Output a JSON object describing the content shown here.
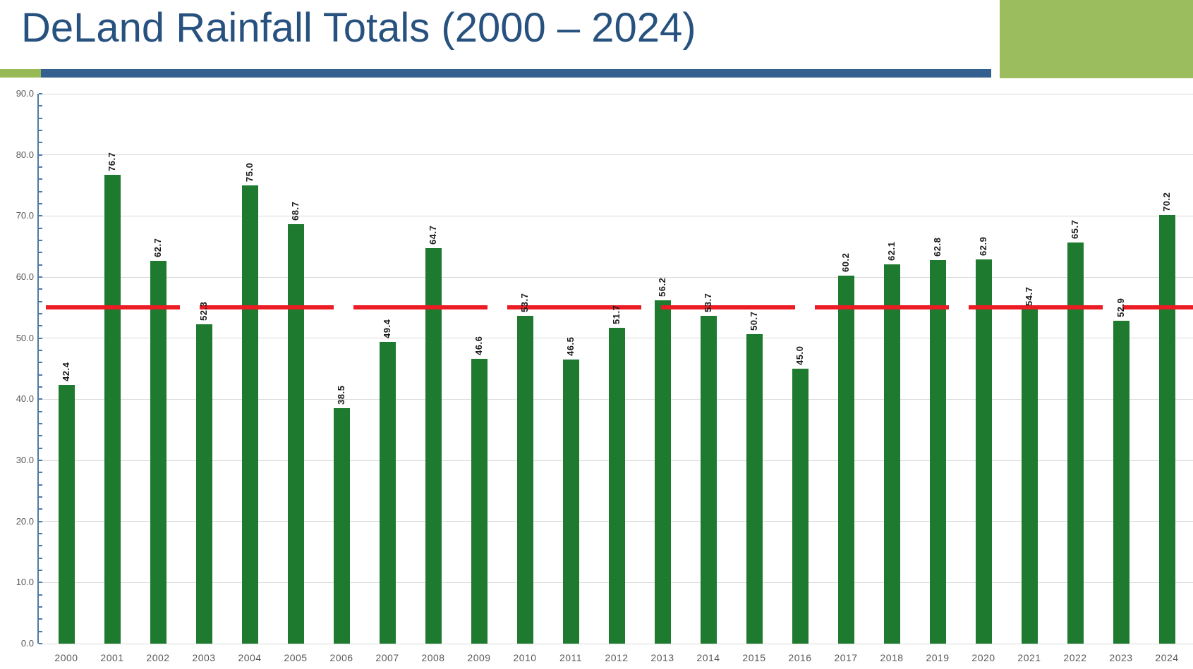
{
  "header": {
    "title": "DeLand Rainfall Totals (2000 – 2024)",
    "title_color": "#27517E",
    "underline_blue": "#33608F",
    "accent_green": "#97B956",
    "corner_green": "#9CBD5D"
  },
  "chart_data": {
    "type": "bar",
    "title": "DeLand Rainfall Totals (2000 – 2024)",
    "categories": [
      "2000",
      "2001",
      "2002",
      "2003",
      "2004",
      "2005",
      "2006",
      "2007",
      "2008",
      "2009",
      "2010",
      "2011",
      "2012",
      "2013",
      "2014",
      "2015",
      "2016",
      "2017",
      "2018",
      "2019",
      "2020",
      "2021",
      "2022",
      "2023",
      "2024"
    ],
    "values": [
      42.4,
      76.7,
      62.7,
      52.3,
      75.0,
      68.7,
      38.5,
      49.4,
      64.7,
      46.6,
      53.7,
      46.5,
      51.7,
      56.2,
      53.7,
      50.7,
      45.0,
      60.2,
      62.1,
      62.8,
      62.9,
      54.7,
      65.7,
      52.9,
      70.2
    ],
    "bar_color": "#1E7A2E",
    "value_label_format": "one_decimal_rotated_90",
    "xlabel": "",
    "ylabel": "",
    "ylim": [
      0,
      90
    ],
    "ytick_step": 10,
    "ytick_labels": [
      "0.0",
      "10.0",
      "20.0",
      "30.0",
      "40.0",
      "50.0",
      "60.0",
      "70.0",
      "80.0",
      "90.0"
    ],
    "minor_tick_step": 2,
    "grid": true,
    "gridline_color": "#D9D9D9",
    "axis_color": "#4A7BA6",
    "tick_label_color": "#595959",
    "reference_line": {
      "value": 55.0,
      "color": "#EC1C24",
      "style": "long-dash"
    }
  }
}
